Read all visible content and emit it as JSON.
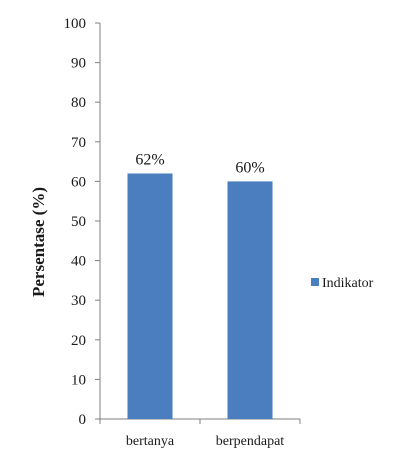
{
  "chart_data": {
    "type": "bar",
    "categories": [
      "bertanya",
      "berpendapat"
    ],
    "series": [
      {
        "name": "Indikator",
        "values": [
          62,
          60
        ],
        "data_labels": [
          "62%",
          "60%"
        ],
        "color": "#4a7ebf"
      }
    ],
    "title": "",
    "xlabel": "",
    "ylabel": "Persentase (%)",
    "ylim": [
      0,
      100
    ],
    "yticks": [
      "0",
      "10",
      "20",
      "30",
      "40",
      "50",
      "60",
      "70",
      "80",
      "90",
      "100"
    ],
    "grid": false,
    "legend": "right"
  }
}
